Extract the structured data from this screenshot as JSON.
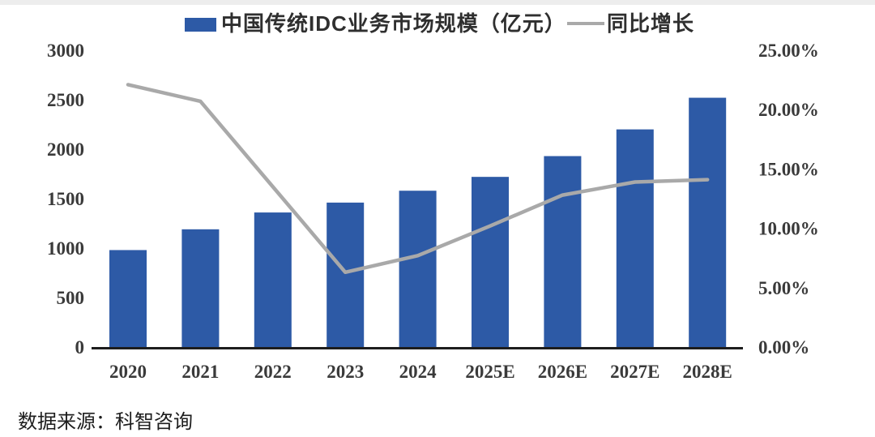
{
  "legend": {
    "bar_label": "中国传统IDC业务市场规模（亿元）",
    "line_label": "同比增长"
  },
  "source_note": "数据来源：科智咨询",
  "colors": {
    "bar": "#2d5aa6",
    "line": "#a9a9a9",
    "axis_text": "#3a3a3a",
    "axis_line": "#1d1d1d"
  },
  "chart_data": {
    "type": "bar",
    "subtype": "bar-line-combo",
    "title": "",
    "categories": [
      "2020",
      "2021",
      "2022",
      "2023",
      "2024",
      "2025E",
      "2026E",
      "2027E",
      "2028E"
    ],
    "series": [
      {
        "name": "中国传统IDC业务市场规模（亿元）",
        "type": "bar",
        "axis": "left",
        "unit": "亿元",
        "values": [
          980,
          1190,
          1360,
          1460,
          1580,
          1720,
          1930,
          2200,
          2520
        ]
      },
      {
        "name": "同比增长",
        "type": "line",
        "axis": "right",
        "unit": "%",
        "values": [
          22.1,
          20.7,
          13.5,
          6.3,
          7.7,
          10.2,
          12.8,
          13.9,
          14.1
        ]
      }
    ],
    "left_axis": {
      "min": 0,
      "max": 3000,
      "step": 500,
      "tick_labels": [
        "0",
        "500",
        "1000",
        "1500",
        "2000",
        "2500",
        "3000"
      ]
    },
    "right_axis": {
      "min": 0,
      "max": 25,
      "step": 5,
      "tick_labels": [
        "0.00%",
        "5.00%",
        "10.00%",
        "15.00%",
        "20.00%",
        "25.00%"
      ]
    },
    "grid": false,
    "legend_position": "top"
  }
}
